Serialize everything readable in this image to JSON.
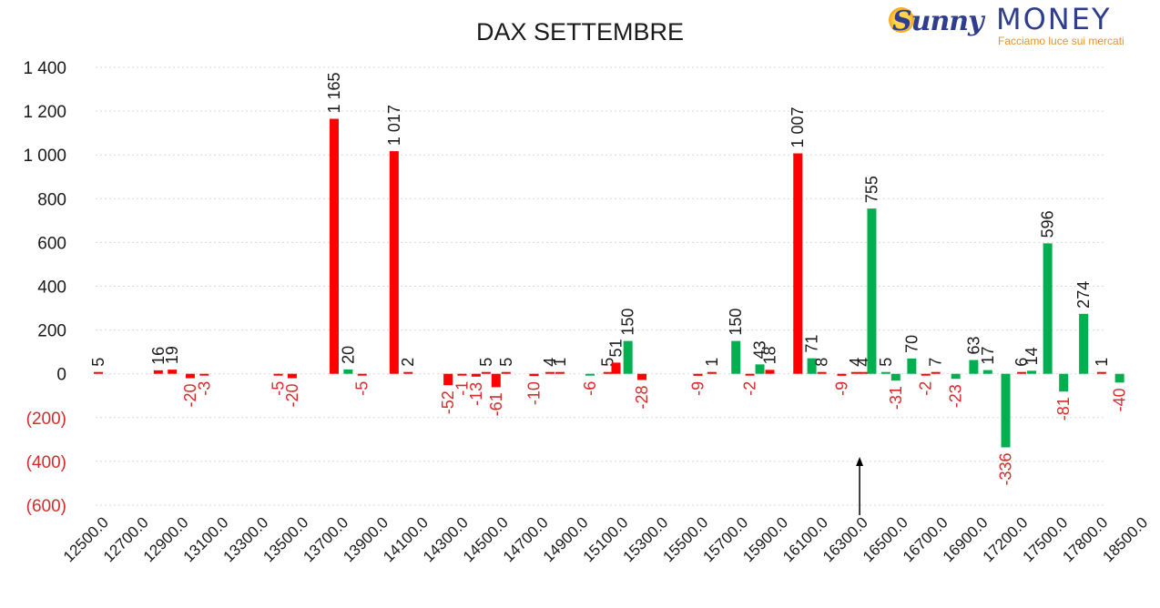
{
  "logo": {
    "word1": "Sunny",
    "word2": "MONEY",
    "tagline": "Facciamo luce sui mercati"
  },
  "colors": {
    "negative": "#ff0000",
    "positive": "#00b050",
    "neg_label": "#d62b2b",
    "text": "#1a1a1a",
    "grid": "#d9d9d9"
  },
  "chart_data": {
    "type": "bar",
    "title": "DAX SETTEMBRE",
    "ylim": [
      -600,
      1400
    ],
    "yticks": [
      "1 400",
      "1 200",
      "1 000",
      "800",
      "600",
      "400",
      "200",
      "0",
      "(200)",
      "(400)",
      "(600)"
    ],
    "ytick_values": [
      1400,
      1200,
      1000,
      800,
      600,
      400,
      200,
      0,
      -200,
      -400,
      -600
    ],
    "xticks": [
      "12500.0",
      "12700.0",
      "12900.0",
      "13100.0",
      "13300.0",
      "13500.0",
      "13700.0",
      "13900.0",
      "14100.0",
      "14300.0",
      "14500.0",
      "14700.0",
      "14900.0",
      "15100.0",
      "15300.0",
      "15500.0",
      "15700.0",
      "15900.0",
      "16100.0",
      "16300.0",
      "16500.0",
      "16700.0",
      "16900.0",
      "17200.0",
      "17500.0",
      "17800.0",
      "18500.0"
    ],
    "grid": true,
    "arrow_at_tick": "16300.0",
    "bars": [
      {
        "slot": 0.0,
        "value": 5,
        "label": "5",
        "color": "neg"
      },
      {
        "slot": 1.5,
        "value": 16,
        "label": "16",
        "color": "neg"
      },
      {
        "slot": 1.85,
        "value": 19,
        "label": "19",
        "color": "neg"
      },
      {
        "slot": 2.3,
        "value": -20,
        "label": "-20",
        "color": "neg"
      },
      {
        "slot": 2.65,
        "value": -3,
        "label": "-3",
        "color": "neg"
      },
      {
        "slot": 4.5,
        "value": -5,
        "label": "-5",
        "color": "neg"
      },
      {
        "slot": 4.85,
        "value": -20,
        "label": "-20",
        "color": "neg"
      },
      {
        "slot": 5.9,
        "value": 1165,
        "label": "1 165",
        "color": "neg"
      },
      {
        "slot": 6.25,
        "value": 20,
        "label": "20",
        "color": "pos"
      },
      {
        "slot": 6.6,
        "value": -5,
        "label": "-5",
        "color": "neg"
      },
      {
        "slot": 7.4,
        "value": 1017,
        "label": "1 017",
        "color": "neg"
      },
      {
        "slot": 7.75,
        "value": 2,
        "label": "2",
        "color": "neg"
      },
      {
        "slot": 8.75,
        "value": -52,
        "label": "-52",
        "color": "neg"
      },
      {
        "slot": 9.1,
        "value": -1,
        "label": "-1",
        "color": "neg"
      },
      {
        "slot": 9.45,
        "value": -13,
        "label": "-13",
        "color": "neg"
      },
      {
        "slot": 9.7,
        "value": 5,
        "label": "5",
        "color": "neg"
      },
      {
        "slot": 9.95,
        "value": -61,
        "label": "-61",
        "color": "neg"
      },
      {
        "slot": 10.2,
        "value": 5,
        "label": "5",
        "color": "neg"
      },
      {
        "slot": 10.9,
        "value": -10,
        "label": "-10",
        "color": "neg"
      },
      {
        "slot": 11.3,
        "value": 4,
        "label": "4",
        "color": "neg"
      },
      {
        "slot": 11.55,
        "value": 1,
        "label": "1",
        "color": "neg"
      },
      {
        "slot": 12.3,
        "value": -6,
        "label": "-6",
        "color": "pos"
      },
      {
        "slot": 12.75,
        "value": 5,
        "label": "5",
        "color": "neg"
      },
      {
        "slot": 12.95,
        "value": 51,
        "label": "51",
        "color": "neg"
      },
      {
        "slot": 13.25,
        "value": 150,
        "label": "150",
        "color": "pos"
      },
      {
        "slot": 13.6,
        "value": -28,
        "label": "-28",
        "color": "neg"
      },
      {
        "slot": 15.0,
        "value": -9,
        "label": "-9",
        "color": "neg"
      },
      {
        "slot": 15.35,
        "value": 1,
        "label": "1",
        "color": "neg"
      },
      {
        "slot": 15.95,
        "value": 150,
        "label": "150",
        "color": "pos"
      },
      {
        "slot": 16.3,
        "value": -2,
        "label": "-2",
        "color": "neg"
      },
      {
        "slot": 16.55,
        "value": 43,
        "label": "43",
        "color": "pos"
      },
      {
        "slot": 16.8,
        "value": 18,
        "label": "18",
        "color": "neg"
      },
      {
        "slot": 17.5,
        "value": 1007,
        "label": "1 007",
        "color": "neg"
      },
      {
        "slot": 17.85,
        "value": 71,
        "label": "71",
        "color": "pos"
      },
      {
        "slot": 18.1,
        "value": 8,
        "label": "8",
        "color": "neg"
      },
      {
        "slot": 18.6,
        "value": -9,
        "label": "-9",
        "color": "neg"
      },
      {
        "slot": 18.95,
        "value": 4,
        "label": "4",
        "color": "neg"
      },
      {
        "slot": 19.15,
        "value": 4,
        "label": "4",
        "color": "neg"
      },
      {
        "slot": 19.35,
        "value": 755,
        "label": "755",
        "color": "pos"
      },
      {
        "slot": 19.7,
        "value": 5,
        "label": "5",
        "color": "pos"
      },
      {
        "slot": 19.95,
        "value": -31,
        "label": "-31",
        "color": "pos"
      },
      {
        "slot": 20.35,
        "value": 70,
        "label": "70",
        "color": "pos"
      },
      {
        "slot": 20.7,
        "value": -2,
        "label": "-2",
        "color": "neg"
      },
      {
        "slot": 20.95,
        "value": 7,
        "label": "7",
        "color": "neg"
      },
      {
        "slot": 21.45,
        "value": -23,
        "label": "-23",
        "color": "pos"
      },
      {
        "slot": 21.9,
        "value": 63,
        "label": "63",
        "color": "pos"
      },
      {
        "slot": 22.25,
        "value": 17,
        "label": "17",
        "color": "pos"
      },
      {
        "slot": 22.7,
        "value": -336,
        "label": "-336",
        "color": "pos"
      },
      {
        "slot": 23.1,
        "value": 6,
        "label": "6",
        "color": "neg"
      },
      {
        "slot": 23.35,
        "value": 14,
        "label": "14",
        "color": "pos"
      },
      {
        "slot": 23.75,
        "value": 596,
        "label": "596",
        "color": "pos"
      },
      {
        "slot": 24.15,
        "value": -81,
        "label": "-81",
        "color": "pos"
      },
      {
        "slot": 24.65,
        "value": 274,
        "label": "274",
        "color": "pos"
      },
      {
        "slot": 25.1,
        "value": 1,
        "label": "1",
        "color": "neg"
      },
      {
        "slot": 25.55,
        "value": -40,
        "label": "-40",
        "color": "pos"
      }
    ]
  }
}
